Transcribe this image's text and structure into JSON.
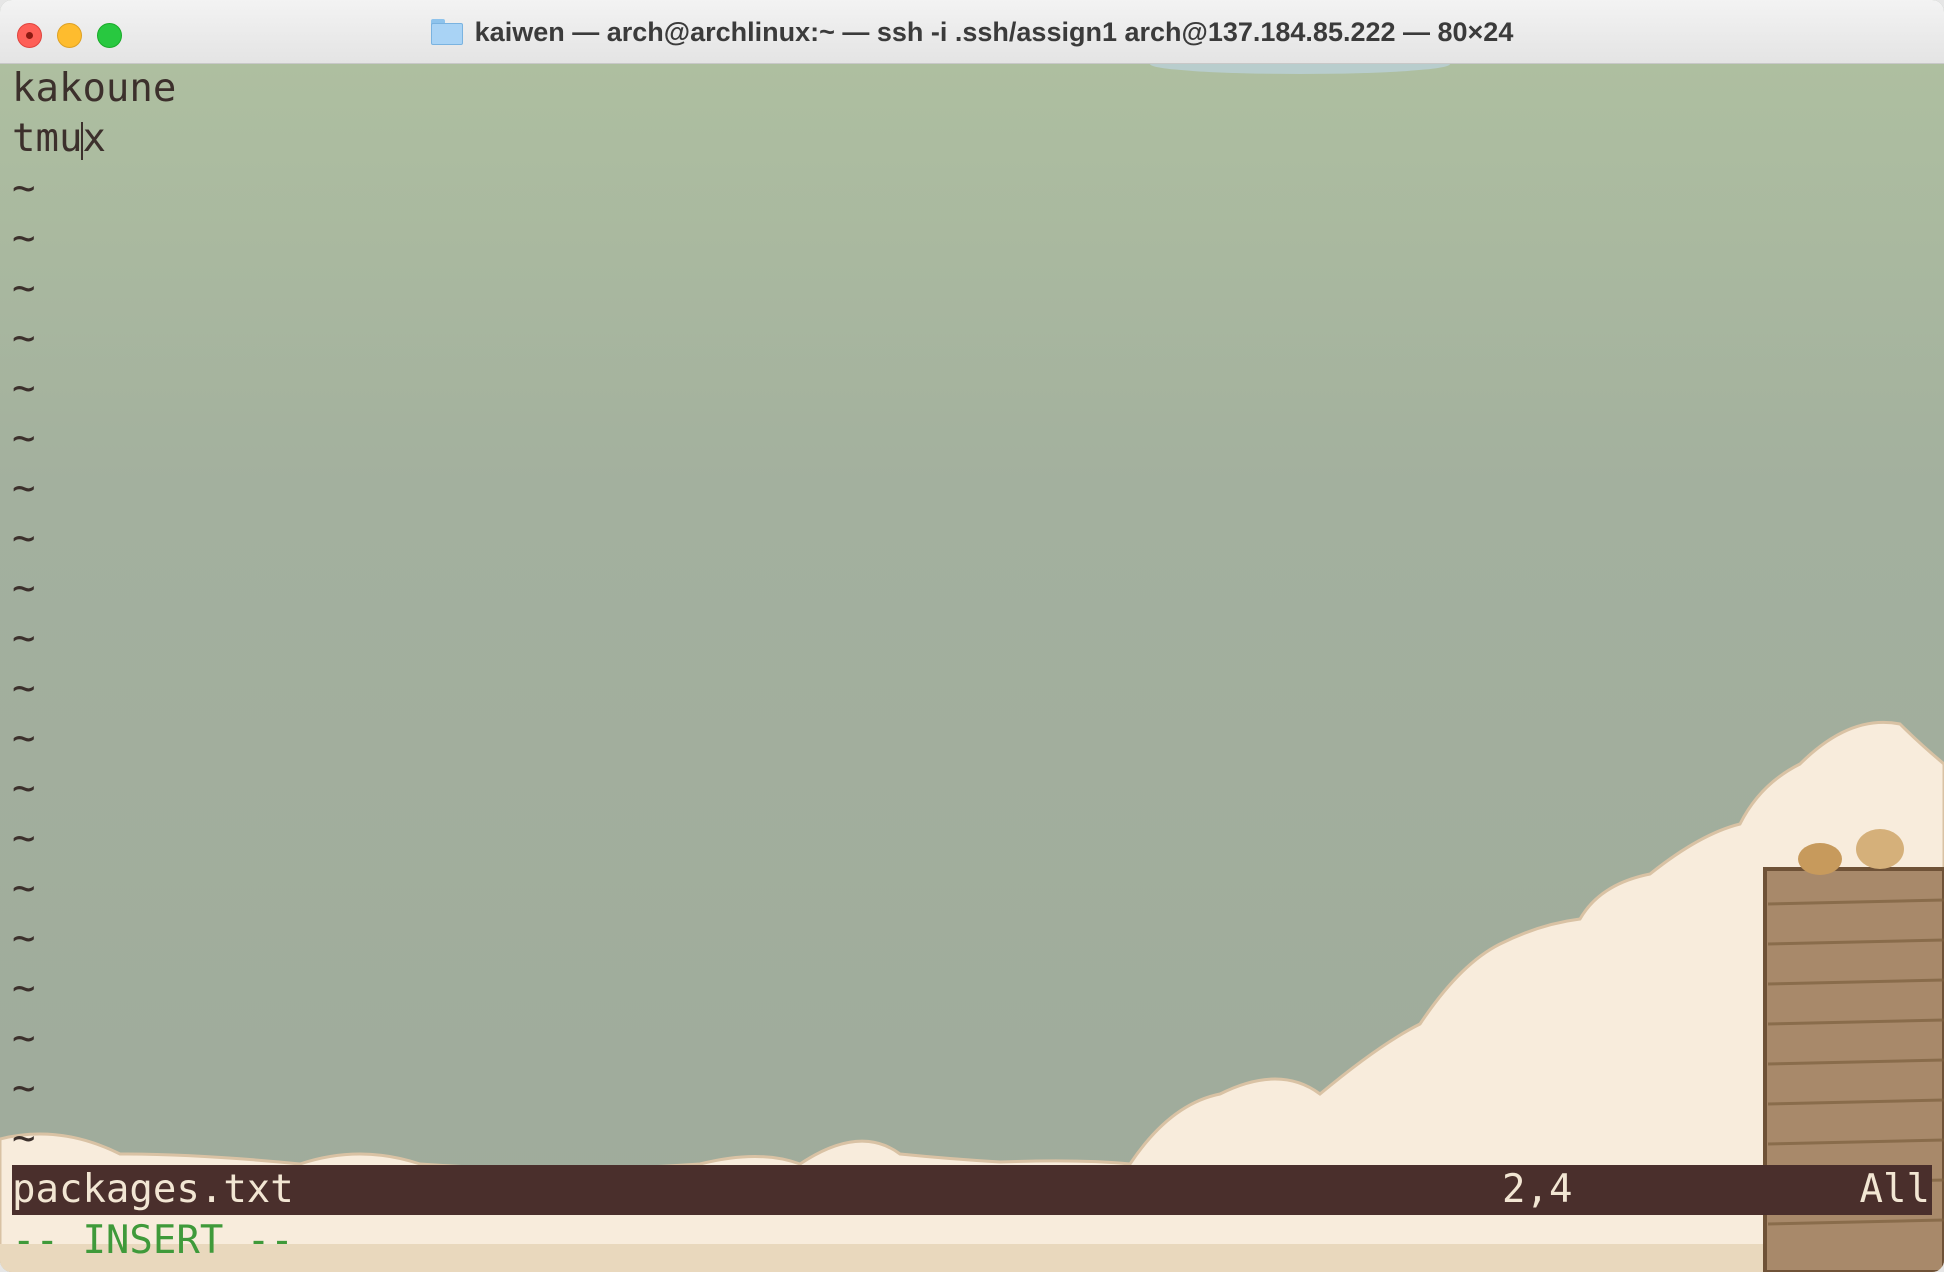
{
  "window": {
    "title": "kaiwen — arch@archlinux:~ — ssh -i .ssh/assign1 arch@137.184.85.222 — 80×24"
  },
  "buffer": {
    "lines": [
      "kakoune",
      "tmu",
      "x"
    ],
    "tilde": "~"
  },
  "statusline": {
    "filename": "packages.txt",
    "position": "2,4",
    "scroll": "All"
  },
  "mode": "-- INSERT --",
  "colors": {
    "text": "#3c302c",
    "statusbar_bg": "#4a2f2c",
    "statusbar_fg": "#f2e6d3",
    "insert_mode": "#3f9a3a"
  }
}
